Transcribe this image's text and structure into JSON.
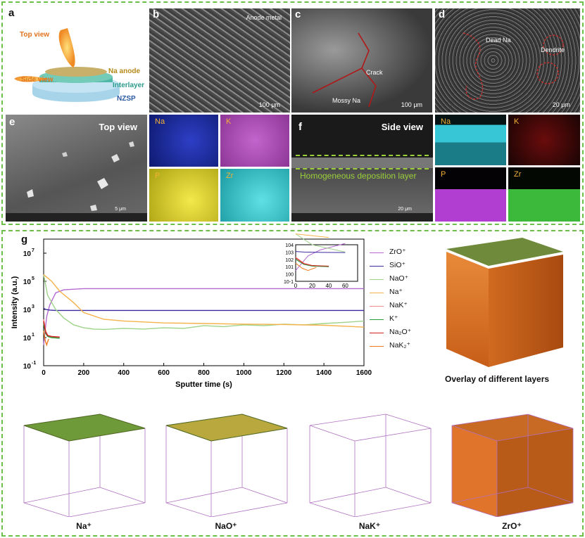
{
  "panel_labels": [
    "a",
    "b",
    "c",
    "d",
    "e",
    "f",
    "g"
  ],
  "schematic": {
    "top_view": "Top view",
    "side_view": "Side view",
    "layers": [
      "Na anode",
      "Interlayer",
      "NZSP"
    ],
    "colors": {
      "anode": "#c9b06a",
      "interlayer": "#4fb7a6",
      "nzsp": "#a8d4ea",
      "beam": "#f08a24"
    }
  },
  "sem_top": {
    "b_label": "Anode metal",
    "b_scale": "100 μm",
    "c_labels": [
      "Crack",
      "Mossy Na"
    ],
    "c_scale": "100 μm",
    "d_labels": [
      "Dead Na",
      "Dendrite"
    ],
    "d_scale": "20 μm"
  },
  "panel_e": {
    "title": "Top view",
    "scale": "5 μm"
  },
  "panel_f": {
    "title": "Side view",
    "layer_label": "Homogeneous deposition layer",
    "scale": "20 μm"
  },
  "maps_e": [
    {
      "el": "Na",
      "color": "#1a2fb0"
    },
    {
      "el": "K",
      "color": "#b44fbf"
    },
    {
      "el": "P",
      "color": "#d9cf1c"
    },
    {
      "el": "Zr",
      "color": "#25c1c6"
    }
  ],
  "maps_f": [
    {
      "el": "Na",
      "color": "#2bb9c9"
    },
    {
      "el": "K",
      "color": "#b8201e"
    },
    {
      "el": "P",
      "color": "#b13ed1"
    },
    {
      "el": "Zr",
      "color": "#3cb83a"
    }
  ],
  "chart_data": {
    "type": "line",
    "title": "",
    "xlabel": "Sputter time (s)",
    "ylabel": "Intensity (a.u.)",
    "yscale": "log",
    "xlim": [
      0,
      1600
    ],
    "ylim": [
      0.1,
      100000000
    ],
    "x_ticks": [
      0,
      200,
      400,
      600,
      800,
      1000,
      1200,
      1400,
      1600
    ],
    "y_ticks": [
      "10^-1",
      "10^1",
      "10^3",
      "10^5",
      "10^7"
    ],
    "legend_position": "right",
    "series": [
      {
        "name": "ZrO⁺",
        "color": "#b36ad0",
        "x": [
          0,
          15,
          30,
          60,
          100,
          200,
          400,
          800,
          1200,
          1600
        ],
        "y": [
          3,
          300,
          2000,
          15000,
          25000,
          30000,
          30000,
          30000,
          30000,
          30000
        ]
      },
      {
        "name": "SiO⁺",
        "color": "#3a2aa0",
        "x": [
          0,
          10,
          30,
          60,
          100,
          400,
          800,
          1200,
          1600
        ],
        "y": [
          1200,
          1000,
          900,
          850,
          850,
          850,
          850,
          850,
          850
        ]
      },
      {
        "name": "NaO⁺",
        "color": "#9fd38a",
        "x": [
          0,
          20,
          60,
          100,
          150,
          200,
          250,
          300,
          400,
          500,
          600,
          700,
          800,
          900,
          1000,
          1100,
          1200,
          1300,
          1400,
          1500,
          1600
        ],
        "y": [
          300000,
          10000,
          1000,
          250,
          80,
          50,
          40,
          38,
          45,
          40,
          50,
          45,
          70,
          60,
          80,
          70,
          90,
          80,
          100,
          120,
          150
        ]
      },
      {
        "name": "Na⁺",
        "color": "#f5b24a",
        "x": [
          0,
          40,
          80,
          150,
          200,
          300,
          400,
          600,
          800,
          1000,
          1200,
          1400,
          1550,
          1600
        ],
        "y": [
          300000,
          100000,
          20000,
          3000,
          600,
          200,
          150,
          110,
          100,
          90,
          85,
          75,
          60,
          55
        ]
      },
      {
        "name": "NaK⁺",
        "color": "#f08a8a",
        "x": [
          0,
          10,
          20,
          40,
          80
        ],
        "y": [
          200,
          30,
          15,
          10,
          10
        ]
      },
      {
        "name": "K⁺",
        "color": "#2a9a3a",
        "x": [
          0,
          10,
          20,
          40,
          80
        ],
        "y": [
          100,
          20,
          12,
          10,
          9
        ]
      },
      {
        "name": "Na₂O⁺",
        "color": "#d42020",
        "x": [
          0,
          10,
          20,
          40,
          80
        ],
        "y": [
          150,
          25,
          14,
          12,
          11
        ]
      },
      {
        "name": "NaK₂⁺",
        "color": "#f07a20",
        "x": [
          0,
          8,
          15,
          25
        ],
        "y": [
          30,
          6,
          3,
          8
        ]
      }
    ],
    "inset": {
      "x_ticks": [
        0,
        20,
        40,
        60
      ],
      "y_ticks": [
        "10^-1",
        "10^0",
        "10^1",
        "10^2",
        "10^3",
        "10^4"
      ],
      "xlim": [
        0,
        75
      ]
    }
  },
  "overlay_caption": "Overlay of different layers",
  "cubes": [
    {
      "label": "Na⁺",
      "fill": "#6f9a3a"
    },
    {
      "label": "NaO⁺",
      "fill": "#b8a83e"
    },
    {
      "label": "NaK⁺",
      "fill": "#ffffff"
    },
    {
      "label": "ZrO⁺",
      "fill": "#e0742a"
    }
  ]
}
